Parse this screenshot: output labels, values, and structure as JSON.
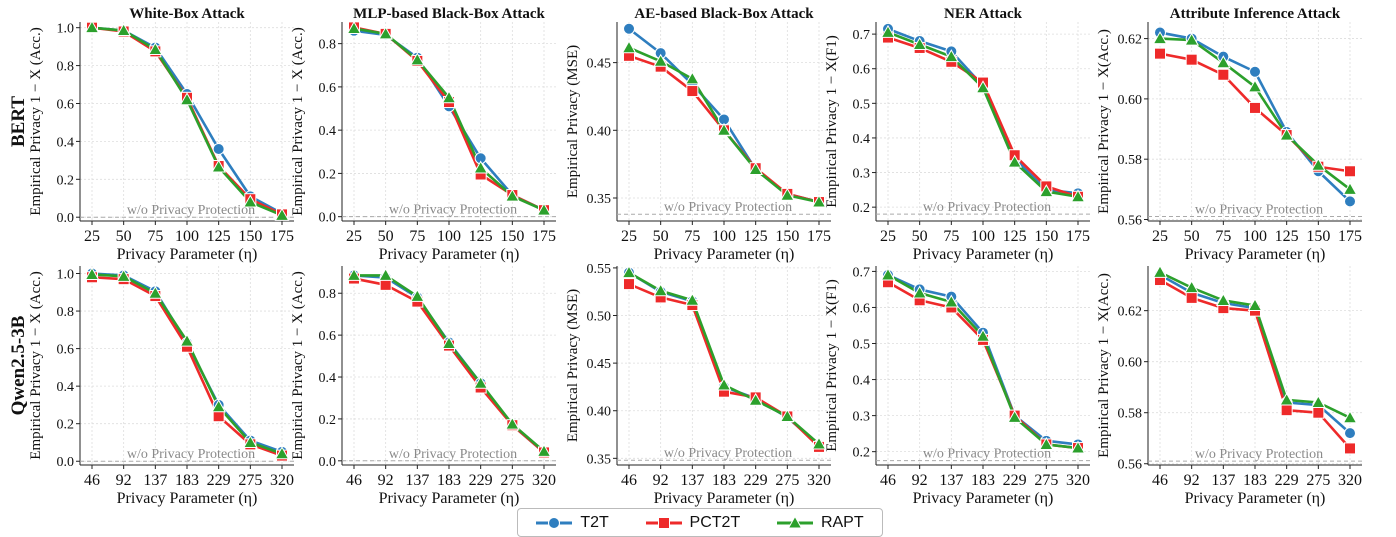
{
  "colors": {
    "T2T": "#2e7ebf",
    "PCT2T": "#ee2a2a",
    "RAPT": "#2ca02c",
    "baseline": "#aaaaaa",
    "grid": "#dddddd"
  },
  "row_labels": [
    "BERT",
    "Qwen2.5-3B"
  ],
  "legend": [
    {
      "name": "T2T",
      "marker": "circle"
    },
    {
      "name": "PCT2T",
      "marker": "square"
    },
    {
      "name": "RAPT",
      "marker": "triangle"
    }
  ],
  "baseline_label": "w/o Privacy Protection",
  "xlabel": "Privacy Parameter (η)",
  "chart_data": [
    {
      "type": "line",
      "row": "BERT",
      "title": "White-Box Attack",
      "xlabel": "Privacy Parameter (η)",
      "ylabel": "Empirical Privacy 1 − X (Acc.)",
      "x": [
        25,
        50,
        75,
        100,
        125,
        150,
        175
      ],
      "ylim": [
        -0.02,
        1.03
      ],
      "yticks": [
        "0.0",
        "0.2",
        "0.4",
        "0.6",
        "0.8",
        "1.0"
      ],
      "baseline": 0.0,
      "series": [
        {
          "name": "T2T",
          "values": [
            1.0,
            0.985,
            0.895,
            0.65,
            0.36,
            0.11,
            0.02
          ]
        },
        {
          "name": "PCT2T",
          "values": [
            1.0,
            0.98,
            0.875,
            0.63,
            0.27,
            0.095,
            0.015
          ]
        },
        {
          "name": "RAPT",
          "values": [
            1.0,
            0.985,
            0.885,
            0.62,
            0.265,
            0.08,
            0.01
          ]
        }
      ]
    },
    {
      "type": "line",
      "row": "BERT",
      "title": "MLP-based Black-Box Attack",
      "xlabel": "Privacy Parameter (η)",
      "ylabel": "Empirical Privacy 1 − X (Acc.)",
      "x": [
        25,
        50,
        75,
        100,
        125,
        150,
        175
      ],
      "ylim": [
        -0.02,
        0.9
      ],
      "yticks": [
        "0.0",
        "0.2",
        "0.4",
        "0.6",
        "0.8"
      ],
      "baseline": 0.0,
      "series": [
        {
          "name": "T2T",
          "values": [
            0.86,
            0.84,
            0.735,
            0.51,
            0.27,
            0.1,
            0.03
          ]
        },
        {
          "name": "PCT2T",
          "values": [
            0.875,
            0.845,
            0.72,
            0.53,
            0.195,
            0.1,
            0.03
          ]
        },
        {
          "name": "RAPT",
          "values": [
            0.87,
            0.845,
            0.725,
            0.55,
            0.225,
            0.095,
            0.03
          ]
        }
      ]
    },
    {
      "type": "line",
      "row": "BERT",
      "title": "AE-based Black-Box Attack",
      "xlabel": "Privacy Parameter (η)",
      "ylabel": "Empirical Privacy (MSE)",
      "x": [
        25,
        50,
        75,
        100,
        125,
        150,
        175
      ],
      "ylim": [
        0.333,
        0.48
      ],
      "yticks": [
        "0.35",
        "0.40",
        "0.45"
      ],
      "baseline": 0.338,
      "series": [
        {
          "name": "T2T",
          "values": [
            0.475,
            0.457,
            0.434,
            0.408,
            0.371,
            0.353,
            0.347
          ]
        },
        {
          "name": "PCT2T",
          "values": [
            0.455,
            0.447,
            0.429,
            0.4,
            0.372,
            0.353,
            0.347
          ]
        },
        {
          "name": "RAPT",
          "values": [
            0.461,
            0.451,
            0.438,
            0.4,
            0.371,
            0.352,
            0.347
          ]
        }
      ]
    },
    {
      "type": "line",
      "row": "BERT",
      "title": "NER Attack",
      "xlabel": "Privacy Parameter (η)",
      "ylabel": "Empirical Privacy 1 − X(F1)",
      "x": [
        25,
        50,
        75,
        100,
        125,
        150,
        175
      ],
      "ylim": [
        0.16,
        0.735
      ],
      "yticks": [
        "0.2",
        "0.3",
        "0.4",
        "0.5",
        "0.6",
        "0.7"
      ],
      "baseline": 0.18,
      "series": [
        {
          "name": "T2T",
          "values": [
            0.715,
            0.68,
            0.65,
            0.55,
            0.34,
            0.25,
            0.24
          ]
        },
        {
          "name": "PCT2T",
          "values": [
            0.69,
            0.66,
            0.62,
            0.56,
            0.35,
            0.26,
            0.23
          ]
        },
        {
          "name": "RAPT",
          "values": [
            0.705,
            0.67,
            0.635,
            0.545,
            0.33,
            0.245,
            0.23
          ]
        }
      ]
    },
    {
      "type": "line",
      "row": "BERT",
      "title": "Attribute Inference Attack",
      "xlabel": "Privacy Parameter (η)",
      "ylabel": "Empirical Privacy 1 − X(Acc.)",
      "x": [
        25,
        50,
        75,
        100,
        125,
        150,
        175
      ],
      "ylim": [
        0.5595,
        0.6255
      ],
      "yticks": [
        "0.56",
        "0.58",
        "0.60",
        "0.62"
      ],
      "baseline": 0.561,
      "series": [
        {
          "name": "T2T",
          "values": [
            0.622,
            0.62,
            0.614,
            0.609,
            0.589,
            0.576,
            0.566
          ]
        },
        {
          "name": "PCT2T",
          "values": [
            0.615,
            0.613,
            0.608,
            0.597,
            0.588,
            0.5775,
            0.576
          ]
        },
        {
          "name": "RAPT",
          "values": [
            0.62,
            0.6195,
            0.612,
            0.604,
            0.588,
            0.578,
            0.57
          ]
        }
      ]
    },
    {
      "type": "line",
      "row": "Qwen2.5-3B",
      "title": "",
      "xlabel": "Privacy Parameter (η)",
      "ylabel": "Empirical Privacy 1 − X (Acc.)",
      "x": [
        46,
        92,
        137,
        183,
        229,
        275,
        320
      ],
      "ylim": [
        -0.02,
        1.04
      ],
      "yticks": [
        "0.0",
        "0.2",
        "0.4",
        "0.6",
        "0.8",
        "1.0"
      ],
      "baseline": 0.0,
      "series": [
        {
          "name": "T2T",
          "values": [
            1.0,
            0.99,
            0.905,
            0.63,
            0.3,
            0.11,
            0.05
          ]
        },
        {
          "name": "PCT2T",
          "values": [
            0.98,
            0.97,
            0.88,
            0.61,
            0.24,
            0.09,
            0.03
          ]
        },
        {
          "name": "RAPT",
          "values": [
            0.995,
            0.985,
            0.895,
            0.64,
            0.29,
            0.1,
            0.04
          ]
        }
      ]
    },
    {
      "type": "line",
      "row": "Qwen2.5-3B",
      "title": "",
      "xlabel": "Privacy Parameter (η)",
      "ylabel": "Empirical Privacy 1 − X (Acc.)",
      "x": [
        46,
        92,
        137,
        183,
        229,
        275,
        320
      ],
      "ylim": [
        -0.02,
        0.93
      ],
      "yticks": [
        "0.0",
        "0.2",
        "0.4",
        "0.6",
        "0.8"
      ],
      "baseline": 0.0,
      "series": [
        {
          "name": "T2T",
          "values": [
            0.885,
            0.875,
            0.78,
            0.565,
            0.37,
            0.17,
            0.04
          ]
        },
        {
          "name": "PCT2T",
          "values": [
            0.87,
            0.84,
            0.76,
            0.55,
            0.35,
            0.17,
            0.04
          ]
        },
        {
          "name": "RAPT",
          "values": [
            0.885,
            0.885,
            0.785,
            0.56,
            0.37,
            0.175,
            0.045
          ]
        }
      ]
    },
    {
      "type": "line",
      "row": "Qwen2.5-3B",
      "title": "",
      "xlabel": "Privacy Parameter (η)",
      "ylabel": "Empirical Privacy (MSE)",
      "x": [
        46,
        92,
        137,
        183,
        229,
        275,
        320
      ],
      "ylim": [
        0.343,
        0.552
      ],
      "yticks": [
        "0.35",
        "0.40",
        "0.45",
        "0.50",
        "0.55"
      ],
      "baseline": 0.348,
      "series": [
        {
          "name": "T2T",
          "values": [
            0.545,
            0.525,
            0.515,
            0.425,
            0.413,
            0.393,
            0.364
          ]
        },
        {
          "name": "PCT2T",
          "values": [
            0.533,
            0.519,
            0.511,
            0.42,
            0.414,
            0.394,
            0.362
          ]
        },
        {
          "name": "RAPT",
          "values": [
            0.545,
            0.526,
            0.516,
            0.427,
            0.411,
            0.394,
            0.365
          ]
        }
      ]
    },
    {
      "type": "line",
      "row": "Qwen2.5-3B",
      "title": "",
      "xlabel": "Privacy Parameter (η)",
      "ylabel": "Empirical Privacy 1 − X(F1)",
      "x": [
        46,
        92,
        137,
        183,
        229,
        275,
        320
      ],
      "ylim": [
        0.163,
        0.715
      ],
      "yticks": [
        "0.2",
        "0.3",
        "0.4",
        "0.5",
        "0.6",
        "0.7"
      ],
      "baseline": 0.175,
      "series": [
        {
          "name": "T2T",
          "values": [
            0.69,
            0.65,
            0.63,
            0.53,
            0.3,
            0.23,
            0.22
          ]
        },
        {
          "name": "PCT2T",
          "values": [
            0.67,
            0.62,
            0.6,
            0.51,
            0.3,
            0.22,
            0.21
          ]
        },
        {
          "name": "RAPT",
          "values": [
            0.69,
            0.64,
            0.615,
            0.52,
            0.295,
            0.22,
            0.21
          ]
        }
      ]
    },
    {
      "type": "line",
      "row": "Qwen2.5-3B",
      "title": "",
      "xlabel": "Privacy Parameter (η)",
      "ylabel": "Empirical Privacy 1 − X(Acc.)",
      "x": [
        46,
        92,
        137,
        183,
        229,
        275,
        320
      ],
      "ylim": [
        0.5595,
        0.6375
      ],
      "yticks": [
        "0.56",
        "0.58",
        "0.60",
        "0.62"
      ],
      "baseline": 0.561,
      "series": [
        {
          "name": "T2T",
          "values": [
            0.634,
            0.627,
            0.623,
            0.621,
            0.584,
            0.583,
            0.572
          ]
        },
        {
          "name": "PCT2T",
          "values": [
            0.632,
            0.625,
            0.621,
            0.62,
            0.581,
            0.58,
            0.566
          ]
        },
        {
          "name": "RAPT",
          "values": [
            0.635,
            0.629,
            0.624,
            0.622,
            0.585,
            0.584,
            0.578
          ]
        }
      ]
    }
  ]
}
